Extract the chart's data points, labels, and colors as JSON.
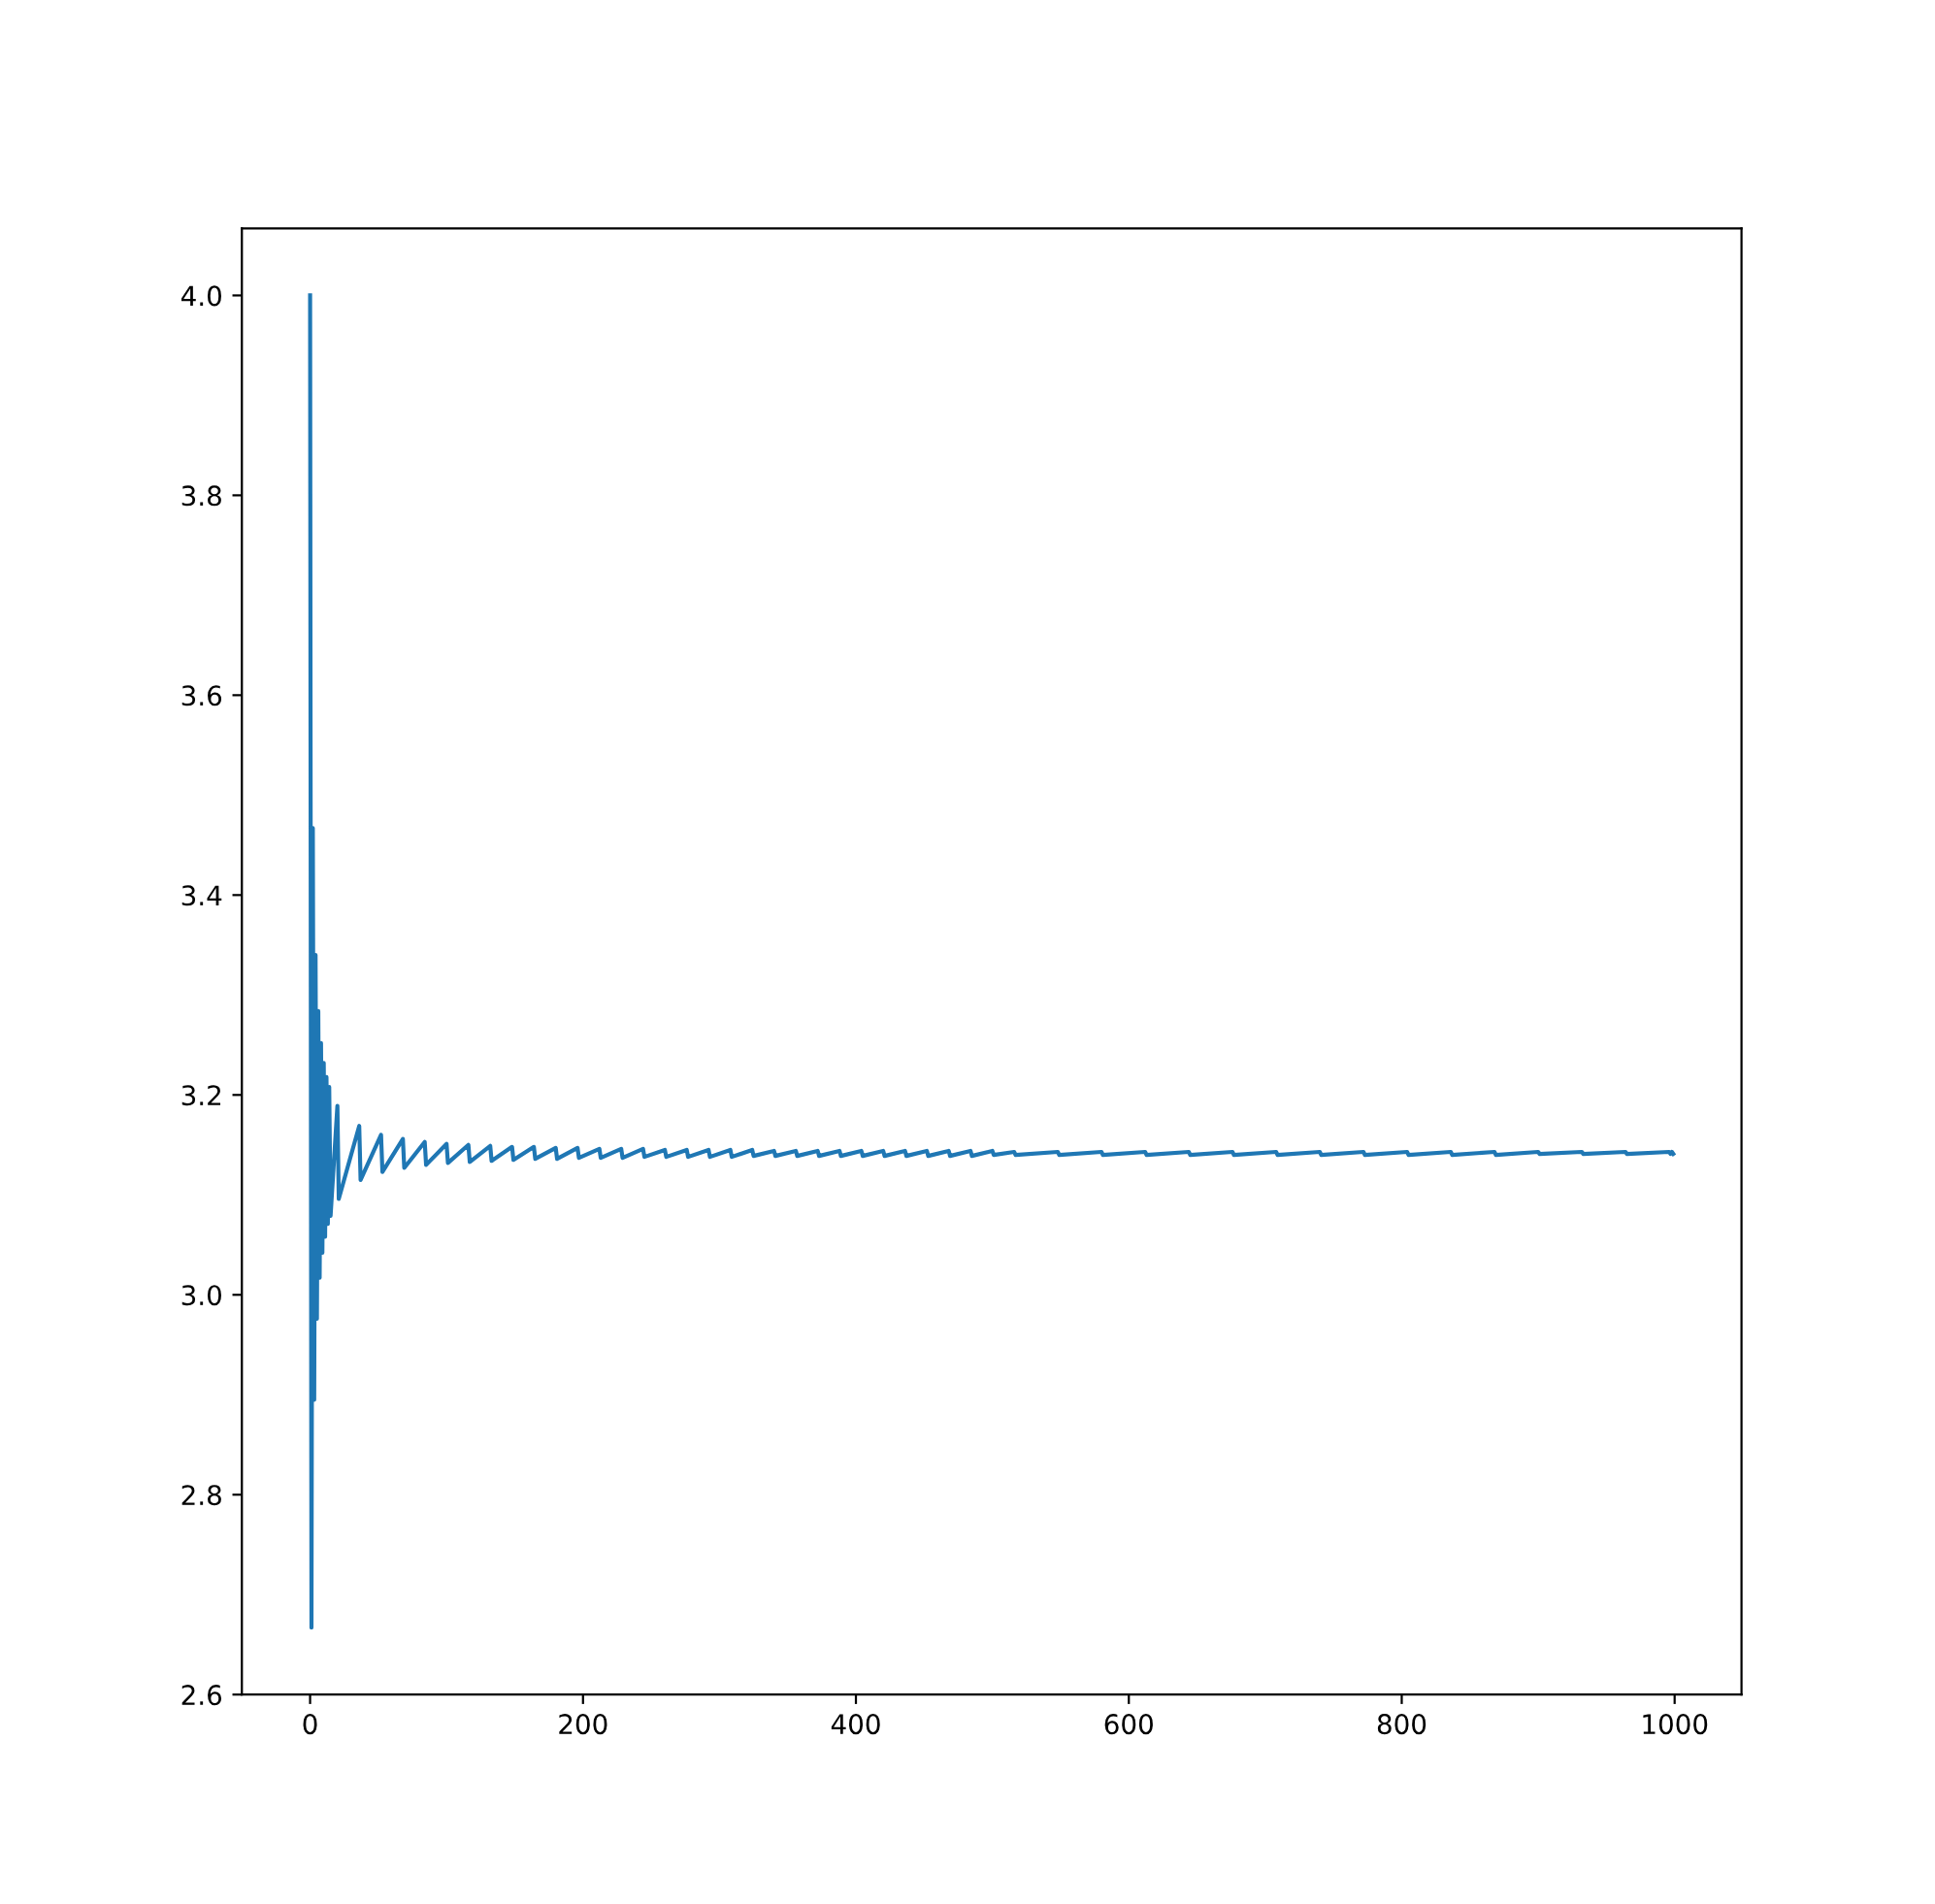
{
  "chart_data": {
    "type": "line",
    "x": [
      0,
      1,
      2,
      3,
      4,
      5,
      6,
      7,
      8,
      9,
      10,
      11,
      12,
      13,
      14,
      15,
      20,
      21,
      36,
      37,
      52,
      53,
      68,
      69,
      84,
      85,
      100,
      101,
      116,
      117,
      132,
      133,
      148,
      149,
      164,
      165,
      180,
      181,
      196,
      197,
      212,
      213,
      228,
      229,
      244,
      245,
      260,
      261,
      276,
      277,
      292,
      293,
      308,
      309,
      324,
      325,
      340,
      341,
      356,
      357,
      372,
      373,
      388,
      389,
      404,
      405,
      420,
      421,
      436,
      437,
      452,
      453,
      468,
      469,
      484,
      485,
      500,
      501,
      516,
      517,
      548,
      549,
      580,
      581,
      612,
      613,
      644,
      645,
      676,
      677,
      708,
      709,
      740,
      741,
      772,
      773,
      804,
      805,
      836,
      837,
      868,
      869,
      900,
      901,
      932,
      933,
      964,
      965,
      996,
      997,
      998,
      999
    ],
    "series": [
      {
        "color": "#1f77b4",
        "values": [
          4.0,
          2.667,
          3.467,
          2.895,
          3.34,
          2.976,
          3.284,
          3.017,
          3.252,
          3.042,
          3.232,
          3.058,
          3.218,
          3.071,
          3.208,
          3.079,
          3.189,
          3.096,
          3.169,
          3.115,
          3.16,
          3.123,
          3.156,
          3.127,
          3.153,
          3.13,
          3.151,
          3.132,
          3.15,
          3.133,
          3.149,
          3.134,
          3.148,
          3.135,
          3.148,
          3.136,
          3.147,
          3.136,
          3.147,
          3.137,
          3.146,
          3.137,
          3.146,
          3.137,
          3.146,
          3.138,
          3.145,
          3.138,
          3.145,
          3.138,
          3.145,
          3.138,
          3.145,
          3.138,
          3.145,
          3.139,
          3.144,
          3.139,
          3.144,
          3.139,
          3.144,
          3.139,
          3.144,
          3.139,
          3.144,
          3.139,
          3.144,
          3.139,
          3.144,
          3.139,
          3.144,
          3.139,
          3.144,
          3.139,
          3.144,
          3.139,
          3.144,
          3.14,
          3.143,
          3.14,
          3.143,
          3.14,
          3.143,
          3.14,
          3.143,
          3.14,
          3.143,
          3.14,
          3.143,
          3.14,
          3.143,
          3.14,
          3.143,
          3.14,
          3.143,
          3.14,
          3.143,
          3.14,
          3.143,
          3.14,
          3.143,
          3.14,
          3.143,
          3.141,
          3.143,
          3.141,
          3.143,
          3.141,
          3.143,
          3.141,
          3.143,
          3.141
        ]
      }
    ],
    "xlim": [
      -50,
      1049
    ],
    "ylim": [
      2.6,
      4.067
    ],
    "xticks": [
      0,
      200,
      400,
      600,
      800,
      1000
    ],
    "yticks": [
      2.6,
      2.8,
      {
        "value": 3,
        "label": "3.0"
      },
      3.2,
      3.4,
      3.6,
      3.8,
      {
        "value": 4,
        "label": "4.0"
      }
    ],
    "grid": false,
    "legend": false,
    "marker": "none",
    "line_style": "solid"
  }
}
